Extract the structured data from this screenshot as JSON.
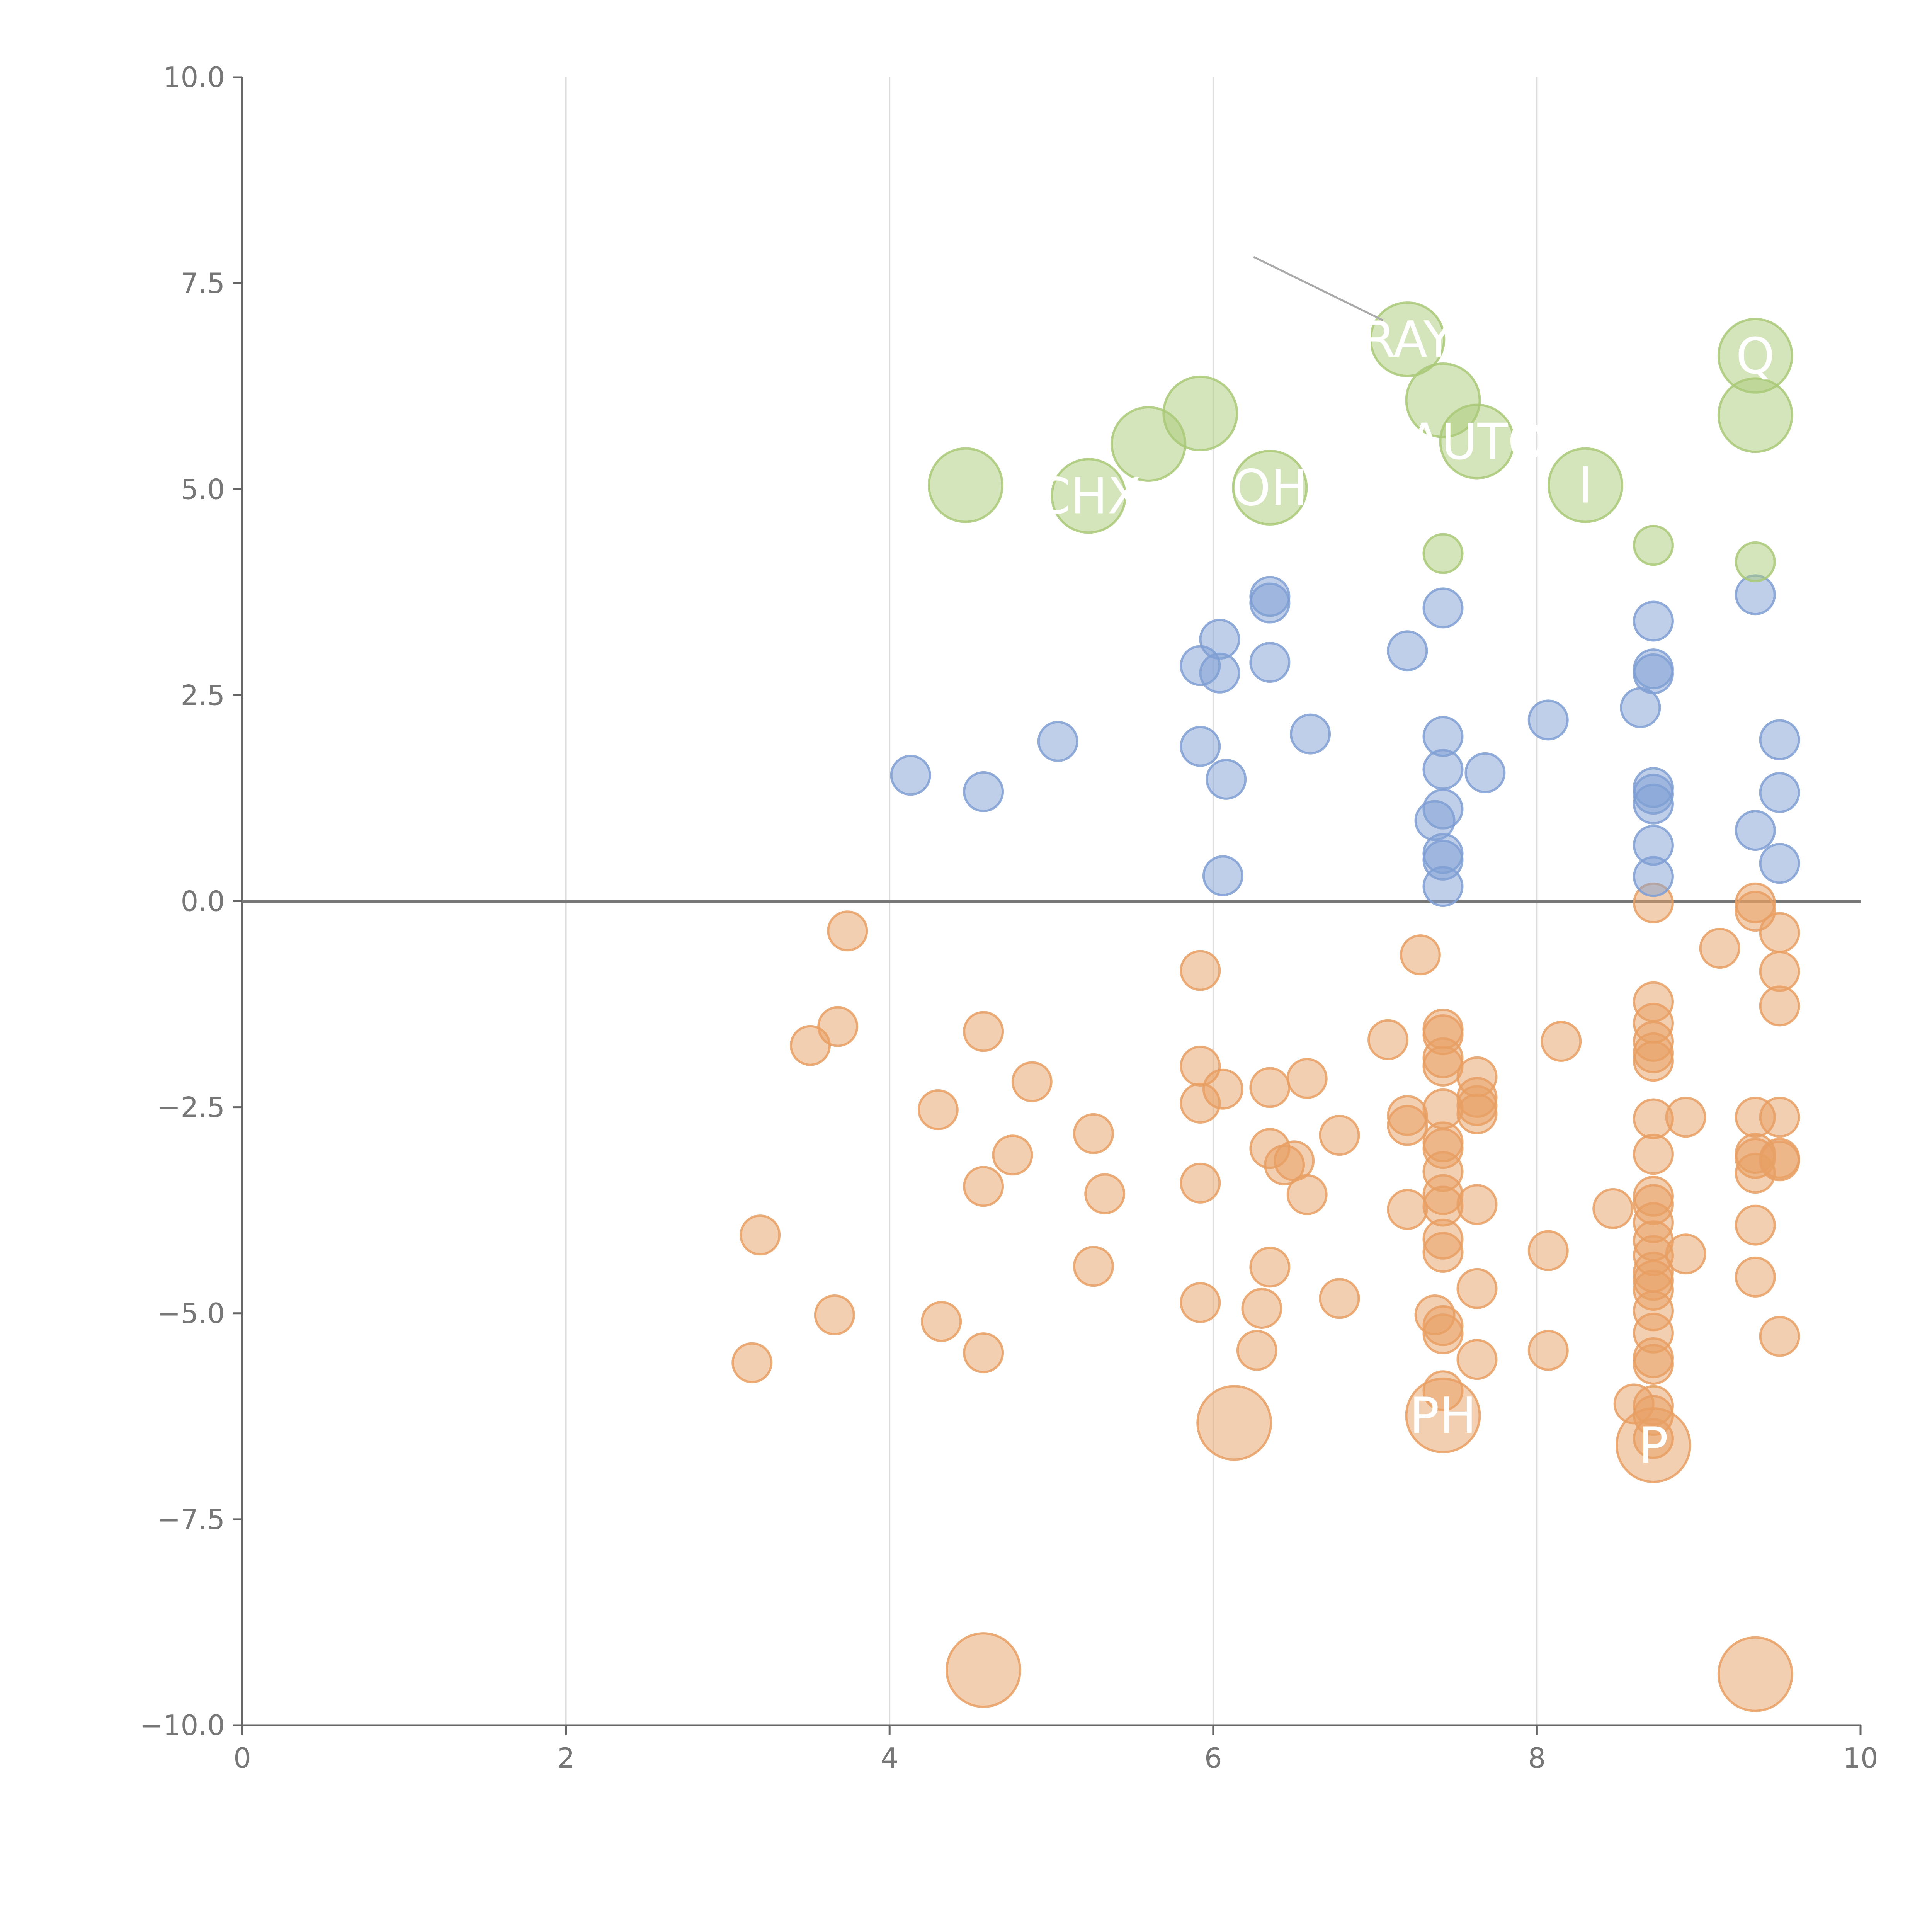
{
  "chart_data": {
    "type": "scatter",
    "title": "",
    "xlabel": "",
    "ylabel": "",
    "xlim": [
      0,
      10
    ],
    "ylim": [
      -10,
      10
    ],
    "x_ticks": [
      "0",
      "2",
      "4",
      "6",
      "8",
      "10"
    ],
    "y_ticks": [
      "10.0",
      "7.5",
      "5.0",
      "2.5",
      "0.0",
      "−2.5",
      "−5.0",
      "−7.5",
      "−10.0"
    ],
    "gridlines": "vertical",
    "reference_line_y": 0,
    "colors": {
      "green": "#a9c977",
      "blue": "#7f9fd3",
      "orange": "#e89f63",
      "axis": "#666666",
      "grid": "#dddddd"
    },
    "series": [
      {
        "name": "green",
        "size": "large",
        "points": [
          {
            "x": 4.47,
            "y": 5.05
          },
          {
            "x": 5.23,
            "y": 4.92
          },
          {
            "x": 5.6,
            "y": 5.55
          },
          {
            "x": 5.92,
            "y": 5.92
          },
          {
            "x": 6.35,
            "y": 5.02
          },
          {
            "x": 7.2,
            "y": 6.82
          },
          {
            "x": 7.42,
            "y": 6.08
          },
          {
            "x": 7.63,
            "y": 5.58
          },
          {
            "x": 8.3,
            "y": 5.05
          },
          {
            "x": 9.35,
            "y": 6.62
          },
          {
            "x": 9.35,
            "y": 5.9
          }
        ]
      },
      {
        "name": "green-small",
        "size": "small",
        "points": [
          {
            "x": 7.42,
            "y": 4.22
          },
          {
            "x": 8.72,
            "y": 4.32
          },
          {
            "x": 9.35,
            "y": 4.12
          }
        ]
      },
      {
        "name": "blue",
        "size": "small",
        "points": [
          {
            "x": 4.13,
            "y": 1.53
          },
          {
            "x": 4.58,
            "y": 1.33
          },
          {
            "x": 5.04,
            "y": 1.94
          },
          {
            "x": 5.92,
            "y": 2.86
          },
          {
            "x": 5.92,
            "y": 1.88
          },
          {
            "x": 6.04,
            "y": 3.18
          },
          {
            "x": 6.04,
            "y": 2.77
          },
          {
            "x": 6.08,
            "y": 1.48
          },
          {
            "x": 6.06,
            "y": 0.31
          },
          {
            "x": 6.35,
            "y": 3.7
          },
          {
            "x": 6.35,
            "y": 3.62
          },
          {
            "x": 6.35,
            "y": 2.9
          },
          {
            "x": 6.6,
            "y": 2.03
          },
          {
            "x": 7.2,
            "y": 3.04
          },
          {
            "x": 7.42,
            "y": 3.56
          },
          {
            "x": 7.42,
            "y": 2.0
          },
          {
            "x": 7.42,
            "y": 1.6
          },
          {
            "x": 7.42,
            "y": 1.12
          },
          {
            "x": 7.37,
            "y": 0.98
          },
          {
            "x": 7.42,
            "y": 0.58
          },
          {
            "x": 7.42,
            "y": 0.5
          },
          {
            "x": 7.42,
            "y": 0.18
          },
          {
            "x": 7.68,
            "y": 1.56
          },
          {
            "x": 8.07,
            "y": 2.2
          },
          {
            "x": 8.64,
            "y": 2.35
          },
          {
            "x": 8.72,
            "y": 3.4
          },
          {
            "x": 8.72,
            "y": 2.82
          },
          {
            "x": 8.72,
            "y": 2.76
          },
          {
            "x": 8.72,
            "y": 1.38
          },
          {
            "x": 8.72,
            "y": 1.3
          },
          {
            "x": 8.72,
            "y": 1.18
          },
          {
            "x": 8.72,
            "y": 0.68
          },
          {
            "x": 8.72,
            "y": 0.3
          },
          {
            "x": 9.35,
            "y": 3.72
          },
          {
            "x": 9.35,
            "y": 0.86
          },
          {
            "x": 9.5,
            "y": 1.96
          },
          {
            "x": 9.5,
            "y": 1.32
          },
          {
            "x": 9.5,
            "y": 0.46
          }
        ]
      },
      {
        "name": "orange",
        "size": "small",
        "points": [
          {
            "x": 3.74,
            "y": -0.36
          },
          {
            "x": 3.51,
            "y": -1.75
          },
          {
            "x": 3.68,
            "y": -1.52
          },
          {
            "x": 3.2,
            "y": -4.05
          },
          {
            "x": 3.66,
            "y": -5.02
          },
          {
            "x": 3.15,
            "y": -5.6
          },
          {
            "x": 4.3,
            "y": -2.53
          },
          {
            "x": 4.32,
            "y": -5.1
          },
          {
            "x": 4.58,
            "y": -1.58
          },
          {
            "x": 4.58,
            "y": -3.46
          },
          {
            "x": 4.58,
            "y": -5.48
          },
          {
            "x": 4.76,
            "y": -3.08
          },
          {
            "x": 4.88,
            "y": -2.19
          },
          {
            "x": 5.26,
            "y": -2.82
          },
          {
            "x": 5.33,
            "y": -3.55
          },
          {
            "x": 5.26,
            "y": -4.43
          },
          {
            "x": 5.92,
            "y": -0.84
          },
          {
            "x": 5.92,
            "y": -2.0
          },
          {
            "x": 5.92,
            "y": -2.45
          },
          {
            "x": 5.92,
            "y": -3.42
          },
          {
            "x": 5.92,
            "y": -4.87
          },
          {
            "x": 6.06,
            "y": -2.28
          },
          {
            "x": 6.35,
            "y": -2.26
          },
          {
            "x": 6.35,
            "y": -3.0
          },
          {
            "x": 6.35,
            "y": -4.44
          },
          {
            "x": 6.44,
            "y": -3.2
          },
          {
            "x": 6.5,
            "y": -3.15
          },
          {
            "x": 6.3,
            "y": -4.94
          },
          {
            "x": 6.27,
            "y": -5.45
          },
          {
            "x": 6.58,
            "y": -2.15
          },
          {
            "x": 6.58,
            "y": -3.56
          },
          {
            "x": 6.78,
            "y": -2.84
          },
          {
            "x": 6.78,
            "y": -4.82
          },
          {
            "x": 7.08,
            "y": -1.68
          },
          {
            "x": 7.2,
            "y": -2.6
          },
          {
            "x": 7.2,
            "y": -2.72
          },
          {
            "x": 7.2,
            "y": -3.74
          },
          {
            "x": 7.28,
            "y": -0.65
          },
          {
            "x": 7.42,
            "y": -1.55
          },
          {
            "x": 7.42,
            "y": -1.62
          },
          {
            "x": 7.42,
            "y": -1.9
          },
          {
            "x": 7.42,
            "y": -2.0
          },
          {
            "x": 7.42,
            "y": -2.52
          },
          {
            "x": 7.42,
            "y": -2.92
          },
          {
            "x": 7.42,
            "y": -3.0
          },
          {
            "x": 7.42,
            "y": -3.28
          },
          {
            "x": 7.42,
            "y": -3.56
          },
          {
            "x": 7.42,
            "y": -3.7
          },
          {
            "x": 7.42,
            "y": -4.1
          },
          {
            "x": 7.42,
            "y": -4.26
          },
          {
            "x": 7.37,
            "y": -5.02
          },
          {
            "x": 7.42,
            "y": -5.15
          },
          {
            "x": 7.42,
            "y": -5.25
          },
          {
            "x": 7.42,
            "y": -5.94
          },
          {
            "x": 7.63,
            "y": -2.13
          },
          {
            "x": 7.63,
            "y": -2.38
          },
          {
            "x": 7.63,
            "y": -2.48
          },
          {
            "x": 7.63,
            "y": -2.58
          },
          {
            "x": 7.63,
            "y": -3.68
          },
          {
            "x": 7.63,
            "y": -4.7
          },
          {
            "x": 7.63,
            "y": -5.56
          },
          {
            "x": 8.07,
            "y": -4.24
          },
          {
            "x": 8.07,
            "y": -5.45
          },
          {
            "x": 8.15,
            "y": -1.7
          },
          {
            "x": 8.47,
            "y": -3.73
          },
          {
            "x": 8.6,
            "y": -6.1
          },
          {
            "x": 8.72,
            "y": -0.02
          },
          {
            "x": 8.72,
            "y": -1.22
          },
          {
            "x": 8.72,
            "y": -1.48
          },
          {
            "x": 8.72,
            "y": -1.7
          },
          {
            "x": 8.72,
            "y": -1.84
          },
          {
            "x": 8.72,
            "y": -1.94
          },
          {
            "x": 8.72,
            "y": -2.64
          },
          {
            "x": 8.72,
            "y": -3.07
          },
          {
            "x": 8.72,
            "y": -3.58
          },
          {
            "x": 8.72,
            "y": -3.68
          },
          {
            "x": 8.72,
            "y": -3.9
          },
          {
            "x": 8.72,
            "y": -4.12
          },
          {
            "x": 8.72,
            "y": -4.3
          },
          {
            "x": 8.72,
            "y": -4.5
          },
          {
            "x": 8.72,
            "y": -4.6
          },
          {
            "x": 8.72,
            "y": -4.72
          },
          {
            "x": 8.72,
            "y": -4.97
          },
          {
            "x": 8.72,
            "y": -5.24
          },
          {
            "x": 8.72,
            "y": -5.54
          },
          {
            "x": 8.72,
            "y": -5.62
          },
          {
            "x": 8.72,
            "y": -6.12
          },
          {
            "x": 8.72,
            "y": -6.24
          },
          {
            "x": 8.72,
            "y": -6.52
          },
          {
            "x": 8.92,
            "y": -2.62
          },
          {
            "x": 8.92,
            "y": -4.28
          },
          {
            "x": 9.13,
            "y": -0.57
          },
          {
            "x": 9.35,
            "y": -0.02
          },
          {
            "x": 9.35,
            "y": -0.12
          },
          {
            "x": 9.35,
            "y": -2.62
          },
          {
            "x": 9.35,
            "y": -3.06
          },
          {
            "x": 9.35,
            "y": -3.12
          },
          {
            "x": 9.35,
            "y": -3.3
          },
          {
            "x": 9.35,
            "y": -3.93
          },
          {
            "x": 9.35,
            "y": -4.56
          },
          {
            "x": 9.5,
            "y": -0.38
          },
          {
            "x": 9.5,
            "y": -0.85
          },
          {
            "x": 9.5,
            "y": -1.27
          },
          {
            "x": 9.5,
            "y": -2.62
          },
          {
            "x": 9.5,
            "y": -3.12
          },
          {
            "x": 9.5,
            "y": -3.15
          },
          {
            "x": 9.5,
            "y": -5.28
          }
        ]
      },
      {
        "name": "orange-large",
        "size": "large",
        "points": [
          {
            "x": 6.13,
            "y": -6.33
          },
          {
            "x": 7.42,
            "y": -6.24
          },
          {
            "x": 8.72,
            "y": -6.6
          },
          {
            "x": 4.58,
            "y": -9.33
          },
          {
            "x": 9.35,
            "y": -9.38
          }
        ]
      }
    ],
    "annotations": [
      {
        "text": "RAY",
        "x": 7.2,
        "y": 6.82
      },
      {
        "text": "Q",
        "x": 9.35,
        "y": 6.62
      },
      {
        "text": "AUTO",
        "x": 7.63,
        "y": 5.58
      },
      {
        "text": "I",
        "x": 8.3,
        "y": 5.05
      },
      {
        "text": "CHX",
        "x": 5.23,
        "y": 4.92
      },
      {
        "text": "OH",
        "x": 6.35,
        "y": 5.02
      },
      {
        "text": "PH",
        "x": 7.42,
        "y": -6.24
      },
      {
        "text": "P",
        "x": 8.72,
        "y": -6.6
      }
    ]
  }
}
